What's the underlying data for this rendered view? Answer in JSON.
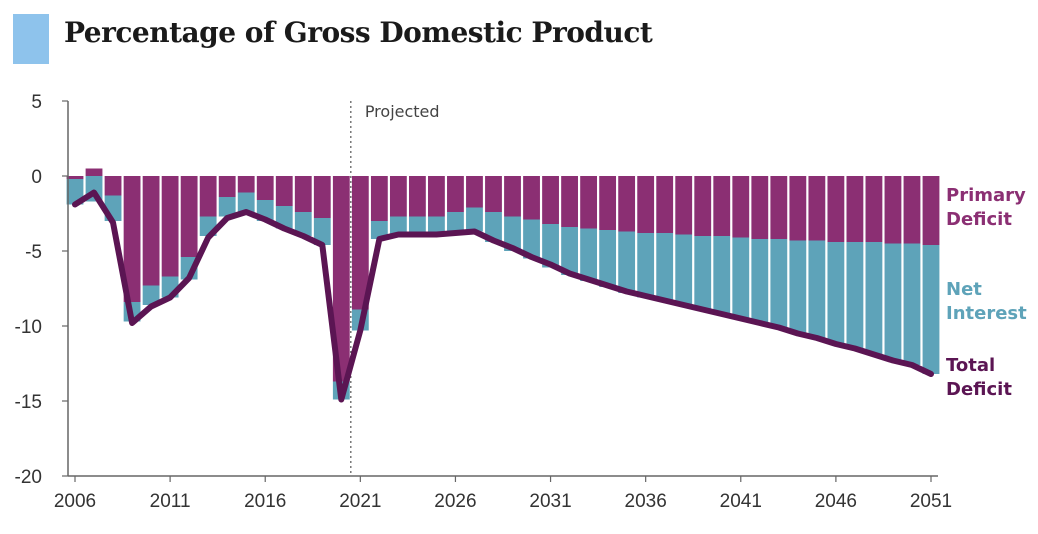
{
  "colors": {
    "title_swatch": "#8ec3ec",
    "primary_deficit": "#8b2f73",
    "net_interest": "#5ea3b9",
    "total_deficit": "#5b1553",
    "axis": "#666666",
    "projected_line": "#555555"
  },
  "header": {
    "title": "Percentage of Gross Domestic Product"
  },
  "chart_data": {
    "type": "bar",
    "stacked": true,
    "negative_stacking": true,
    "title": "Percentage of Gross Domestic Product",
    "xlabel": "",
    "ylabel": "",
    "ylim": [
      -20,
      5
    ],
    "y_ticks": [
      5,
      0,
      -5,
      -10,
      -15,
      -20
    ],
    "x_tick_years": [
      2006,
      2011,
      2016,
      2021,
      2026,
      2031,
      2036,
      2041,
      2046,
      2051
    ],
    "grid": false,
    "projected_start_year": 2020.5,
    "projected_label": "Projected",
    "years": [
      2006,
      2007,
      2008,
      2009,
      2010,
      2011,
      2012,
      2013,
      2014,
      2015,
      2016,
      2017,
      2018,
      2019,
      2020,
      2021,
      2022,
      2023,
      2024,
      2025,
      2026,
      2027,
      2028,
      2029,
      2030,
      2031,
      2032,
      2033,
      2034,
      2035,
      2036,
      2037,
      2038,
      2039,
      2040,
      2041,
      2042,
      2043,
      2044,
      2045,
      2046,
      2047,
      2048,
      2049,
      2050,
      2051
    ],
    "series": [
      {
        "name": "Primary Deficit",
        "kind": "bar",
        "values": [
          -0.2,
          0.5,
          -1.3,
          -8.4,
          -7.3,
          -6.7,
          -5.4,
          -2.7,
          -1.4,
          -1.1,
          -1.6,
          -2.0,
          -2.4,
          -2.8,
          -13.7,
          -8.9,
          -3.0,
          -2.7,
          -2.7,
          -2.7,
          -2.4,
          -2.1,
          -2.4,
          -2.7,
          -2.9,
          -3.2,
          -3.4,
          -3.5,
          -3.6,
          -3.7,
          -3.8,
          -3.8,
          -3.9,
          -4.0,
          -4.0,
          -4.1,
          -4.2,
          -4.2,
          -4.3,
          -4.3,
          -4.4,
          -4.4,
          -4.4,
          -4.5,
          -4.5,
          -4.6
        ]
      },
      {
        "name": "Net Interest",
        "kind": "bar",
        "values": [
          -1.7,
          -1.7,
          -1.7,
          -1.3,
          -1.3,
          -1.4,
          -1.5,
          -1.3,
          -1.3,
          -1.3,
          -1.4,
          -1.5,
          -1.6,
          -1.8,
          -1.2,
          -1.4,
          -1.2,
          -1.2,
          -1.2,
          -1.2,
          -1.4,
          -1.6,
          -2.0,
          -2.3,
          -2.6,
          -2.9,
          -3.2,
          -3.5,
          -3.8,
          -4.1,
          -4.3,
          -4.5,
          -4.7,
          -4.9,
          -5.2,
          -5.4,
          -5.6,
          -5.9,
          -6.2,
          -6.5,
          -6.8,
          -7.1,
          -7.5,
          -7.8,
          -8.1,
          -8.6
        ]
      },
      {
        "name": "Total Deficit",
        "kind": "line",
        "values": [
          -1.9,
          -1.1,
          -3.1,
          -9.8,
          -8.7,
          -8.1,
          -6.8,
          -4.1,
          -2.8,
          -2.4,
          -2.9,
          -3.5,
          -4.0,
          -4.6,
          -14.9,
          -10.3,
          -4.2,
          -3.9,
          -3.9,
          -3.9,
          -3.8,
          -3.7,
          -4.3,
          -4.8,
          -5.4,
          -5.9,
          -6.5,
          -6.9,
          -7.3,
          -7.7,
          -8.0,
          -8.3,
          -8.6,
          -8.9,
          -9.2,
          -9.5,
          -9.8,
          -10.1,
          -10.5,
          -10.8,
          -11.2,
          -11.5,
          -11.9,
          -12.3,
          -12.6,
          -13.2
        ]
      }
    ],
    "legend": [
      {
        "lines": [
          "Primary",
          "Deficit"
        ],
        "color_key": "primary_deficit"
      },
      {
        "lines": [
          "Net",
          "Interest"
        ],
        "color_key": "net_interest"
      },
      {
        "lines": [
          "Total",
          "Deficit"
        ],
        "color_key": "total_deficit"
      }
    ]
  }
}
